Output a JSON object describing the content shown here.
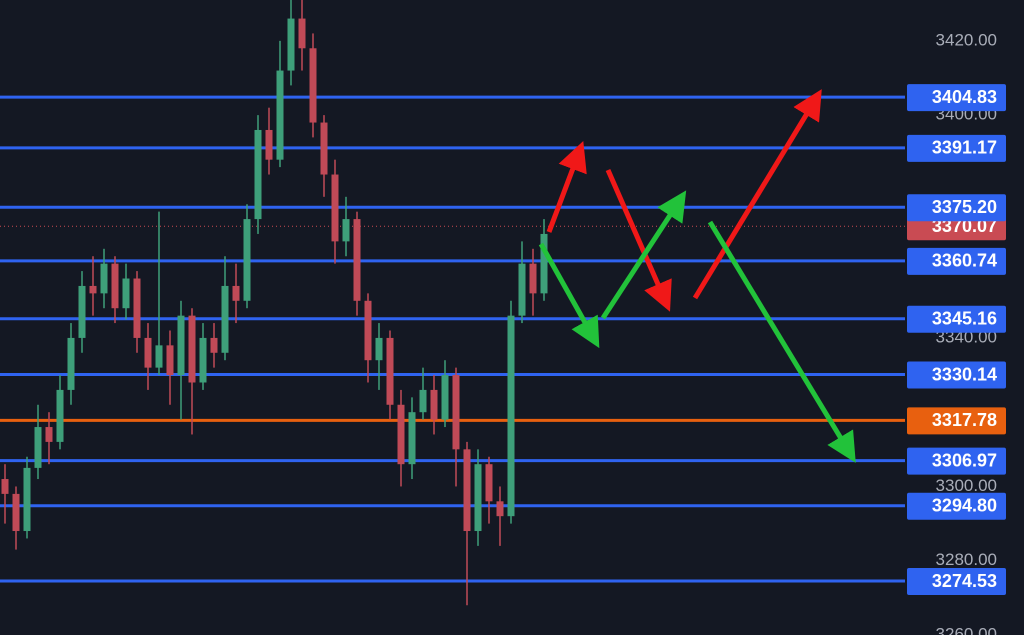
{
  "chart_data": {
    "type": "candlestick",
    "open": [
      3302,
      3298,
      3288,
      3305,
      3316,
      3312,
      3326,
      3340,
      3354,
      3352,
      3360,
      3348,
      3356,
      3340,
      3332,
      3338,
      3330,
      3346,
      3328,
      3340,
      3336,
      3354,
      3350,
      3372,
      3396,
      3388,
      3412,
      3426,
      3418,
      3398,
      3384,
      3366,
      3372,
      3350,
      3334,
      3340,
      3322,
      3306,
      3320,
      3326,
      3318,
      3330,
      3310,
      3288,
      3306,
      3296,
      3292,
      3346,
      3360,
      3352
    ],
    "high": [
      3306,
      3300,
      3308,
      3322,
      3320,
      3330,
      3344,
      3358,
      3362,
      3364,
      3362,
      3360,
      3358,
      3344,
      3374,
      3342,
      3350,
      3348,
      3344,
      3344,
      3362,
      3360,
      3376,
      3400,
      3402,
      3420,
      3431,
      3431,
      3422,
      3400,
      3388,
      3378,
      3374,
      3352,
      3344,
      3342,
      3326,
      3324,
      3332,
      3330,
      3334,
      3332,
      3312,
      3310,
      3308,
      3300,
      3350,
      3366,
      3364,
      3372
    ],
    "low": [
      3290,
      3283,
      3286,
      3302,
      3306,
      3310,
      3322,
      3336,
      3346,
      3348,
      3344,
      3345,
      3336,
      3326,
      3330,
      3322,
      3318,
      3314,
      3326,
      3332,
      3334,
      3344,
      3348,
      3368,
      3384,
      3386,
      3408,
      3412,
      3394,
      3378,
      3360,
      3362,
      3346,
      3328,
      3326,
      3318,
      3300,
      3302,
      3318,
      3314,
      3316,
      3300,
      3268,
      3284,
      3290,
      3284,
      3290,
      3344,
      3346,
      3350
    ],
    "close": [
      3298,
      3288,
      3305,
      3316,
      3312,
      3326,
      3340,
      3354,
      3352,
      3360,
      3348,
      3356,
      3340,
      3332,
      3338,
      3330,
      3346,
      3328,
      3340,
      3336,
      3354,
      3350,
      3372,
      3396,
      3388,
      3412,
      3426,
      3418,
      3398,
      3384,
      3366,
      3372,
      3350,
      3334,
      3340,
      3322,
      3306,
      3320,
      3326,
      3318,
      3330,
      3310,
      3288,
      3306,
      3296,
      3292,
      3346,
      3360,
      3352,
      3368
    ],
    "up_color": "#3e9f7a",
    "down_color": "#c04a57",
    "ylim": [
      3260,
      3431
    ],
    "yticks": [
      {
        "value": 3420,
        "label": "3420.00"
      },
      {
        "value": 3400,
        "label": "3400.00"
      },
      {
        "value": 3340,
        "label": "3340.00"
      },
      {
        "value": 3300,
        "label": "3300.00"
      },
      {
        "value": 3280,
        "label": "3280.00"
      },
      {
        "value": 3260,
        "label": "3260.00"
      }
    ],
    "levels": [
      {
        "value": 3404.83,
        "color": "#2f63f0"
      },
      {
        "value": 3391.17,
        "color": "#2f63f0"
      },
      {
        "value": {
          "value": 3375.2,
          "label": "3375.20"
        },
        "color": "#2f63f0"
      },
      {
        "value": 3360.74,
        "color": "#2f63f0"
      },
      {
        "value": 3345.16,
        "color": "#2f63f0"
      },
      {
        "value": 3330.14,
        "color": "#2f63f0"
      },
      {
        "value": 3317.78,
        "color": "#e8600f"
      },
      {
        "value": 3306.97,
        "color": "#2f63f0"
      },
      {
        "value": {
          "value": 3294.8,
          "label": "3294.80"
        },
        "color": "#2f63f0"
      },
      {
        "value": 3274.53,
        "color": "#2f63f0"
      }
    ],
    "last_price": 3370.07,
    "last_price_color": "#c94b53"
  }
}
